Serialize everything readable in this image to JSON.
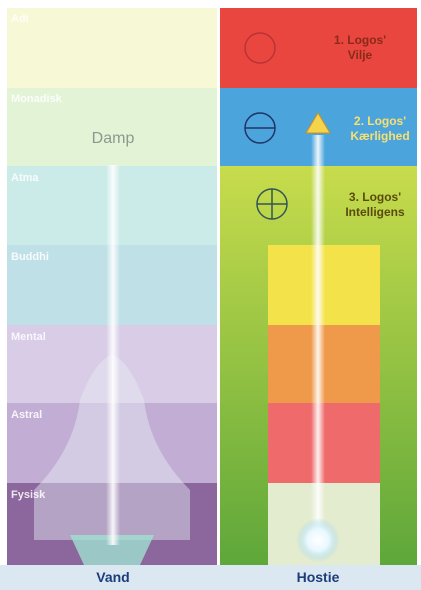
{
  "left": {
    "bands": [
      "Adi",
      "Monadisk",
      "Atma",
      "Buddhi",
      "Mental",
      "Astral",
      "Fysisk"
    ],
    "center_label": "Damp",
    "caption": "Vand"
  },
  "right": {
    "sections": [
      {
        "lines": [
          "1. Logos'",
          "Vilje"
        ]
      },
      {
        "lines": [
          "2. Logos'",
          "Kærlighed"
        ]
      },
      {
        "lines": [
          "3. Logos'",
          "Intelligens"
        ]
      }
    ],
    "caption": "Hostie"
  }
}
